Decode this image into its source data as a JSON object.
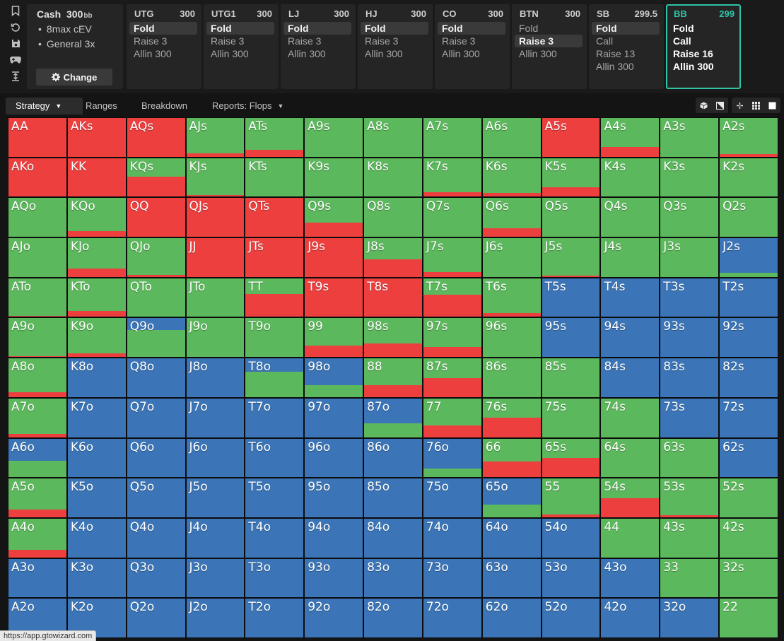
{
  "colors": {
    "raise": "#ee3f3f",
    "call": "#5cb85c",
    "fold": "#3b75b7",
    "accent": "#2ec4a6"
  },
  "sidebar_icons": [
    "bookmark-icon",
    "refresh-icon",
    "save-icon",
    "gamepad-icon",
    "expand-vertical-icon"
  ],
  "cash_panel": {
    "title": "Cash",
    "stack": "300",
    "stack_unit": "bb",
    "lines": [
      "8max cEV",
      "General 3x"
    ],
    "change_label": "Change"
  },
  "seats": [
    {
      "name": "UTG",
      "stack": "300",
      "actions": [
        "Fold",
        "Raise 3",
        "Allin 300"
      ],
      "selected": 0
    },
    {
      "name": "UTG1",
      "stack": "300",
      "actions": [
        "Fold",
        "Raise 3",
        "Allin 300"
      ],
      "selected": 0
    },
    {
      "name": "LJ",
      "stack": "300",
      "actions": [
        "Fold",
        "Raise 3",
        "Allin 300"
      ],
      "selected": 0
    },
    {
      "name": "HJ",
      "stack": "300",
      "actions": [
        "Fold",
        "Raise 3",
        "Allin 300"
      ],
      "selected": 0
    },
    {
      "name": "CO",
      "stack": "300",
      "actions": [
        "Fold",
        "Raise 3",
        "Allin 300"
      ],
      "selected": 0
    },
    {
      "name": "BTN",
      "stack": "300",
      "actions": [
        "Fold",
        "Raise 3",
        "Allin 300"
      ],
      "selected": 1
    },
    {
      "name": "SB",
      "stack": "299.5",
      "actions": [
        "Fold",
        "Call",
        "Raise 13",
        "Allin 300"
      ],
      "selected": 0
    },
    {
      "name": "BB",
      "stack": "299",
      "actions": [
        "Fold",
        "Call",
        "Raise 16",
        "Allin 300"
      ],
      "selected": -1,
      "active": true
    }
  ],
  "tabs": [
    {
      "label": "Strategy",
      "dropdown": true,
      "active": true
    },
    {
      "label": "Ranges",
      "dropdown": false,
      "active": false
    },
    {
      "label": "Breakdown",
      "dropdown": false,
      "active": false
    },
    {
      "label": "Reports: Flops",
      "dropdown": true,
      "active": false
    }
  ],
  "view_buttons": [
    "cube-icon",
    "half-square-icon",
    "compress-icon",
    "grid-icon",
    "square-icon"
  ],
  "matrix": {
    "hands": [
      [
        "AA",
        "AKs",
        "AQs",
        "AJs",
        "ATs",
        "A9s",
        "A8s",
        "A7s",
        "A6s",
        "A5s",
        "A4s",
        "A3s",
        "A2s"
      ],
      [
        "AKo",
        "KK",
        "KQs",
        "KJs",
        "KTs",
        "K9s",
        "K8s",
        "K7s",
        "K6s",
        "K5s",
        "K4s",
        "K3s",
        "K2s"
      ],
      [
        "AQo",
        "KQo",
        "QQ",
        "QJs",
        "QTs",
        "Q9s",
        "Q8s",
        "Q7s",
        "Q6s",
        "Q5s",
        "Q4s",
        "Q3s",
        "Q2s"
      ],
      [
        "AJo",
        "KJo",
        "QJo",
        "JJ",
        "JTs",
        "J9s",
        "J8s",
        "J7s",
        "J6s",
        "J5s",
        "J4s",
        "J3s",
        "J2s"
      ],
      [
        "ATo",
        "KTo",
        "QTo",
        "JTo",
        "TT",
        "T9s",
        "T8s",
        "T7s",
        "T6s",
        "T5s",
        "T4s",
        "T3s",
        "T2s"
      ],
      [
        "A9o",
        "K9o",
        "Q9o",
        "J9o",
        "T9o",
        "99",
        "98s",
        "97s",
        "96s",
        "95s",
        "94s",
        "93s",
        "92s"
      ],
      [
        "A8o",
        "K8o",
        "Q8o",
        "J8o",
        "T8o",
        "98o",
        "88",
        "87s",
        "86s",
        "85s",
        "84s",
        "83s",
        "82s"
      ],
      [
        "A7o",
        "K7o",
        "Q7o",
        "J7o",
        "T7o",
        "97o",
        "87o",
        "77",
        "76s",
        "75s",
        "74s",
        "73s",
        "72s"
      ],
      [
        "A6o",
        "K6o",
        "Q6o",
        "J6o",
        "T6o",
        "96o",
        "86o",
        "76o",
        "66",
        "65s",
        "64s",
        "63s",
        "62s"
      ],
      [
        "A5o",
        "K5o",
        "Q5o",
        "J5o",
        "T5o",
        "95o",
        "85o",
        "75o",
        "65o",
        "55",
        "54s",
        "53s",
        "52s"
      ],
      [
        "A4o",
        "K4o",
        "Q4o",
        "J4o",
        "T4o",
        "94o",
        "84o",
        "74o",
        "64o",
        "54o",
        "44",
        "43s",
        "42s"
      ],
      [
        "A3o",
        "K3o",
        "Q3o",
        "J3o",
        "T3o",
        "93o",
        "83o",
        "73o",
        "63o",
        "53o",
        "43o",
        "33",
        "32s"
      ],
      [
        "A2o",
        "K2o",
        "Q2o",
        "J2o",
        "T2o",
        "92o",
        "82o",
        "72o",
        "62o",
        "52o",
        "42o",
        "32o",
        "22"
      ]
    ],
    "strategy": [
      [
        [
          1,
          0,
          0
        ],
        [
          1,
          0,
          0
        ],
        [
          1,
          0,
          0
        ],
        [
          0.08,
          0.92,
          0
        ],
        [
          0.18,
          0.82,
          0
        ],
        [
          0,
          1,
          0
        ],
        [
          0,
          1,
          0
        ],
        [
          0,
          1,
          0
        ],
        [
          0,
          1,
          0
        ],
        [
          1,
          0,
          0
        ],
        [
          0.25,
          0.75,
          0
        ],
        [
          0,
          1,
          0
        ],
        [
          0.06,
          0.94,
          0
        ]
      ],
      [
        [
          1,
          0,
          0
        ],
        [
          1,
          0,
          0
        ],
        [
          0.52,
          0.48,
          0
        ],
        [
          0.05,
          0.95,
          0
        ],
        [
          0,
          1,
          0
        ],
        [
          0,
          1,
          0
        ],
        [
          0,
          1,
          0
        ],
        [
          0.12,
          0.88,
          0
        ],
        [
          0.1,
          0.9,
          0
        ],
        [
          0.25,
          0.75,
          0
        ],
        [
          0,
          1,
          0
        ],
        [
          0,
          1,
          0
        ],
        [
          0,
          1,
          0
        ]
      ],
      [
        [
          0,
          1,
          0
        ],
        [
          0.15,
          0.85,
          0
        ],
        [
          1,
          0,
          0
        ],
        [
          1,
          0,
          0
        ],
        [
          1,
          0,
          0
        ],
        [
          0.36,
          0.64,
          0
        ],
        [
          0,
          1,
          0
        ],
        [
          0,
          1,
          0
        ],
        [
          0.22,
          0.78,
          0
        ],
        [
          0,
          1,
          0
        ],
        [
          0,
          1,
          0
        ],
        [
          0,
          1,
          0
        ],
        [
          0,
          1,
          0
        ]
      ],
      [
        [
          0,
          1,
          0
        ],
        [
          0.22,
          0.78,
          0
        ],
        [
          0.05,
          0.95,
          0
        ],
        [
          1,
          0,
          0
        ],
        [
          1,
          0,
          0
        ],
        [
          1,
          0,
          0
        ],
        [
          0.45,
          0.55,
          0
        ],
        [
          0.12,
          0.88,
          0
        ],
        [
          0,
          1,
          0
        ],
        [
          0.04,
          0.96,
          0
        ],
        [
          0,
          1,
          0
        ],
        [
          0,
          1,
          0
        ],
        [
          0,
          0.1,
          0.9
        ]
      ],
      [
        [
          0.02,
          0.98,
          0
        ],
        [
          0.15,
          0.85,
          0
        ],
        [
          0,
          1,
          0
        ],
        [
          0,
          1,
          0
        ],
        [
          0.6,
          0.4,
          0
        ],
        [
          1,
          0,
          0
        ],
        [
          1,
          0,
          0
        ],
        [
          0.58,
          0.42,
          0
        ],
        [
          0.1,
          0.9,
          0
        ],
        [
          0,
          0,
          1
        ],
        [
          0,
          0,
          1
        ],
        [
          0,
          0,
          1
        ],
        [
          0,
          0,
          1
        ]
      ],
      [
        [
          0.02,
          0.98,
          0
        ],
        [
          0.1,
          0.9,
          0
        ],
        [
          0,
          0.7,
          0.3
        ],
        [
          0,
          1,
          0
        ],
        [
          0,
          1,
          0
        ],
        [
          0.3,
          0.7,
          0
        ],
        [
          0.35,
          0.65,
          0
        ],
        [
          0.25,
          0.75,
          0
        ],
        [
          0,
          1,
          0
        ],
        [
          0,
          0,
          1
        ],
        [
          0,
          0,
          1
        ],
        [
          0,
          0,
          1
        ],
        [
          0,
          0,
          1
        ]
      ],
      [
        [
          0.12,
          0.88,
          0
        ],
        [
          0,
          0,
          1
        ],
        [
          0,
          0,
          1
        ],
        [
          0,
          0,
          1
        ],
        [
          0,
          0.65,
          0.35
        ],
        [
          0,
          0.3,
          0.7
        ],
        [
          0.3,
          0.7,
          0
        ],
        [
          0.5,
          0.5,
          0
        ],
        [
          0,
          1,
          0
        ],
        [
          0,
          1,
          0
        ],
        [
          0,
          0,
          1
        ],
        [
          0,
          0,
          1
        ],
        [
          0,
          0,
          1
        ]
      ],
      [
        [
          0.08,
          0.92,
          0
        ],
        [
          0,
          0,
          1
        ],
        [
          0,
          0,
          1
        ],
        [
          0,
          0,
          1
        ],
        [
          0,
          0,
          1
        ],
        [
          0,
          0,
          1
        ],
        [
          0,
          0.35,
          0.65
        ],
        [
          0.3,
          0.7,
          0
        ],
        [
          0.5,
          0.5,
          0
        ],
        [
          0,
          1,
          0
        ],
        [
          0,
          1,
          0
        ],
        [
          0,
          0,
          1
        ],
        [
          0,
          0,
          1
        ]
      ],
      [
        [
          0,
          0.42,
          0.58
        ],
        [
          0,
          0,
          1
        ],
        [
          0,
          0,
          1
        ],
        [
          0,
          0,
          1
        ],
        [
          0,
          0,
          1
        ],
        [
          0,
          0,
          1
        ],
        [
          0,
          0,
          1
        ],
        [
          0,
          0.22,
          0.78
        ],
        [
          0.4,
          0.6,
          0
        ],
        [
          0.5,
          0.5,
          0
        ],
        [
          0,
          1,
          0
        ],
        [
          0,
          1,
          0
        ],
        [
          0,
          0,
          1
        ]
      ],
      [
        [
          0.2,
          0.8,
          0
        ],
        [
          0,
          0,
          1
        ],
        [
          0,
          0,
          1
        ],
        [
          0,
          0,
          1
        ],
        [
          0,
          0,
          1
        ],
        [
          0,
          0,
          1
        ],
        [
          0,
          0,
          1
        ],
        [
          0,
          0,
          1
        ],
        [
          0,
          0.32,
          0.68
        ],
        [
          0.08,
          0.92,
          0
        ],
        [
          0.5,
          0.5,
          0
        ],
        [
          0.06,
          0.94,
          0
        ],
        [
          0,
          1,
          0
        ]
      ],
      [
        [
          0.2,
          0.8,
          0
        ],
        [
          0,
          0,
          1
        ],
        [
          0,
          0,
          1
        ],
        [
          0,
          0,
          1
        ],
        [
          0,
          0,
          1
        ],
        [
          0,
          0,
          1
        ],
        [
          0,
          0,
          1
        ],
        [
          0,
          0,
          1
        ],
        [
          0,
          0,
          1
        ],
        [
          0,
          0,
          1
        ],
        [
          0,
          1,
          0
        ],
        [
          0,
          1,
          0
        ],
        [
          0,
          1,
          0
        ]
      ],
      [
        [
          0,
          0,
          1
        ],
        [
          0,
          0,
          1
        ],
        [
          0,
          0,
          1
        ],
        [
          0,
          0,
          1
        ],
        [
          0,
          0,
          1
        ],
        [
          0,
          0,
          1
        ],
        [
          0,
          0,
          1
        ],
        [
          0,
          0,
          1
        ],
        [
          0,
          0,
          1
        ],
        [
          0,
          0,
          1
        ],
        [
          0,
          0,
          1
        ],
        [
          0,
          1,
          0
        ],
        [
          0,
          1,
          0
        ]
      ],
      [
        [
          0,
          0,
          1
        ],
        [
          0,
          0,
          1
        ],
        [
          0,
          0,
          1
        ],
        [
          0,
          0,
          1
        ],
        [
          0,
          0,
          1
        ],
        [
          0,
          0,
          1
        ],
        [
          0,
          0,
          1
        ],
        [
          0,
          0,
          1
        ],
        [
          0,
          0,
          1
        ],
        [
          0,
          0,
          1
        ],
        [
          0,
          0,
          1
        ],
        [
          0,
          0,
          1
        ],
        [
          0,
          1,
          0
        ]
      ]
    ]
  },
  "status_url": "https://app.gtowizard.com"
}
